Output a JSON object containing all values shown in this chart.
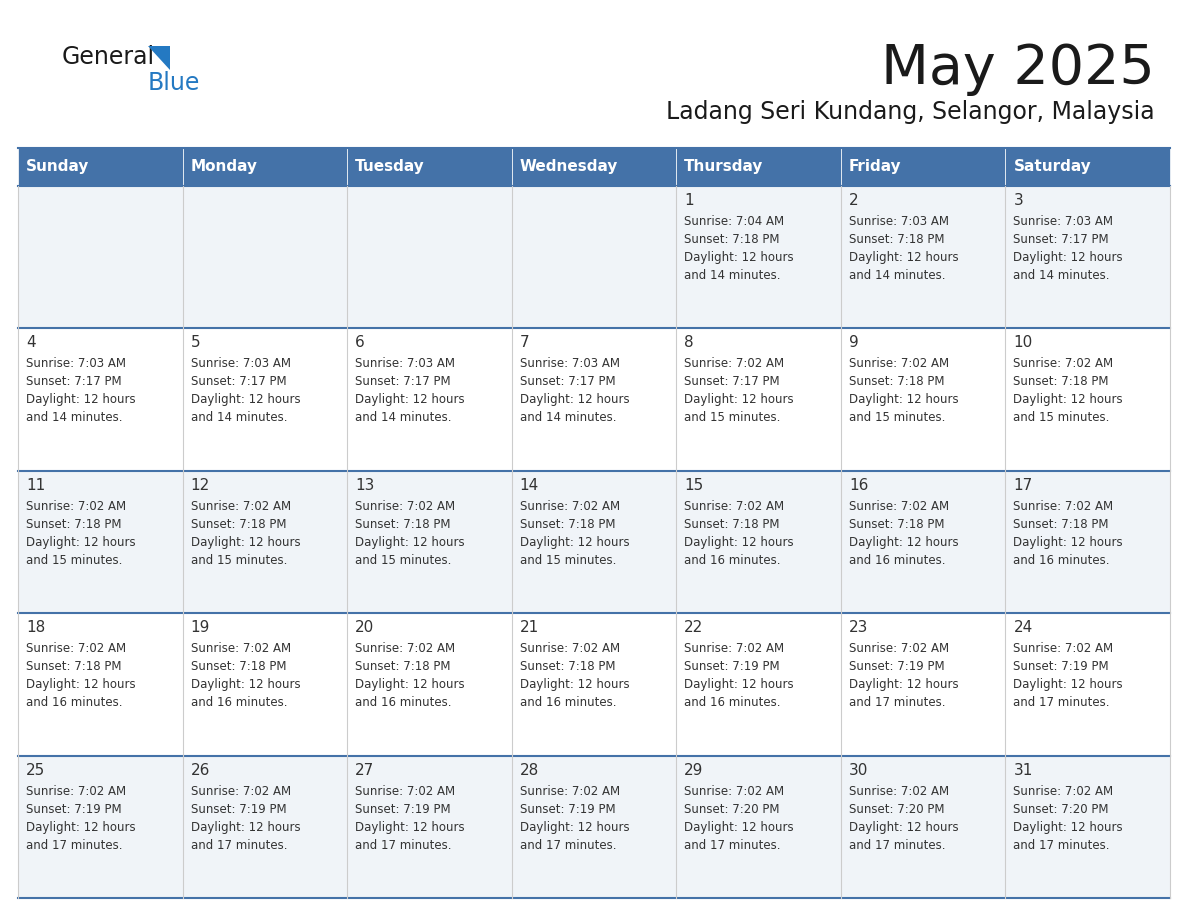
{
  "title": "May 2025",
  "subtitle": "Ladang Seri Kundang, Selangor, Malaysia",
  "header_bg": "#4472A8",
  "header_text": "#FFFFFF",
  "day_names": [
    "Sunday",
    "Monday",
    "Tuesday",
    "Wednesday",
    "Thursday",
    "Friday",
    "Saturday"
  ],
  "row_bg_even": "#F0F4F8",
  "row_bg_odd": "#FFFFFF",
  "cell_text_color": "#333333",
  "title_color": "#1A1A1A",
  "logo_general_color": "#1A1A1A",
  "logo_blue_color": "#2479C2",
  "logo_triangle_color": "#2479C2",
  "row_border_color": "#4472A8",
  "col_border_color": "#CCCCCC",
  "days": [
    {
      "date": 1,
      "col": 4,
      "row": 0,
      "sunrise": "7:04 AM",
      "sunset": "7:18 PM",
      "minutes": "14"
    },
    {
      "date": 2,
      "col": 5,
      "row": 0,
      "sunrise": "7:03 AM",
      "sunset": "7:18 PM",
      "minutes": "14"
    },
    {
      "date": 3,
      "col": 6,
      "row": 0,
      "sunrise": "7:03 AM",
      "sunset": "7:17 PM",
      "minutes": "14"
    },
    {
      "date": 4,
      "col": 0,
      "row": 1,
      "sunrise": "7:03 AM",
      "sunset": "7:17 PM",
      "minutes": "14"
    },
    {
      "date": 5,
      "col": 1,
      "row": 1,
      "sunrise": "7:03 AM",
      "sunset": "7:17 PM",
      "minutes": "14"
    },
    {
      "date": 6,
      "col": 2,
      "row": 1,
      "sunrise": "7:03 AM",
      "sunset": "7:17 PM",
      "minutes": "14"
    },
    {
      "date": 7,
      "col": 3,
      "row": 1,
      "sunrise": "7:03 AM",
      "sunset": "7:17 PM",
      "minutes": "14"
    },
    {
      "date": 8,
      "col": 4,
      "row": 1,
      "sunrise": "7:02 AM",
      "sunset": "7:17 PM",
      "minutes": "15"
    },
    {
      "date": 9,
      "col": 5,
      "row": 1,
      "sunrise": "7:02 AM",
      "sunset": "7:18 PM",
      "minutes": "15"
    },
    {
      "date": 10,
      "col": 6,
      "row": 1,
      "sunrise": "7:02 AM",
      "sunset": "7:18 PM",
      "minutes": "15"
    },
    {
      "date": 11,
      "col": 0,
      "row": 2,
      "sunrise": "7:02 AM",
      "sunset": "7:18 PM",
      "minutes": "15"
    },
    {
      "date": 12,
      "col": 1,
      "row": 2,
      "sunrise": "7:02 AM",
      "sunset": "7:18 PM",
      "minutes": "15"
    },
    {
      "date": 13,
      "col": 2,
      "row": 2,
      "sunrise": "7:02 AM",
      "sunset": "7:18 PM",
      "minutes": "15"
    },
    {
      "date": 14,
      "col": 3,
      "row": 2,
      "sunrise": "7:02 AM",
      "sunset": "7:18 PM",
      "minutes": "15"
    },
    {
      "date": 15,
      "col": 4,
      "row": 2,
      "sunrise": "7:02 AM",
      "sunset": "7:18 PM",
      "minutes": "16"
    },
    {
      "date": 16,
      "col": 5,
      "row": 2,
      "sunrise": "7:02 AM",
      "sunset": "7:18 PM",
      "minutes": "16"
    },
    {
      "date": 17,
      "col": 6,
      "row": 2,
      "sunrise": "7:02 AM",
      "sunset": "7:18 PM",
      "minutes": "16"
    },
    {
      "date": 18,
      "col": 0,
      "row": 3,
      "sunrise": "7:02 AM",
      "sunset": "7:18 PM",
      "minutes": "16"
    },
    {
      "date": 19,
      "col": 1,
      "row": 3,
      "sunrise": "7:02 AM",
      "sunset": "7:18 PM",
      "minutes": "16"
    },
    {
      "date": 20,
      "col": 2,
      "row": 3,
      "sunrise": "7:02 AM",
      "sunset": "7:18 PM",
      "minutes": "16"
    },
    {
      "date": 21,
      "col": 3,
      "row": 3,
      "sunrise": "7:02 AM",
      "sunset": "7:18 PM",
      "minutes": "16"
    },
    {
      "date": 22,
      "col": 4,
      "row": 3,
      "sunrise": "7:02 AM",
      "sunset": "7:19 PM",
      "minutes": "16"
    },
    {
      "date": 23,
      "col": 5,
      "row": 3,
      "sunrise": "7:02 AM",
      "sunset": "7:19 PM",
      "minutes": "17"
    },
    {
      "date": 24,
      "col": 6,
      "row": 3,
      "sunrise": "7:02 AM",
      "sunset": "7:19 PM",
      "minutes": "17"
    },
    {
      "date": 25,
      "col": 0,
      "row": 4,
      "sunrise": "7:02 AM",
      "sunset": "7:19 PM",
      "minutes": "17"
    },
    {
      "date": 26,
      "col": 1,
      "row": 4,
      "sunrise": "7:02 AM",
      "sunset": "7:19 PM",
      "minutes": "17"
    },
    {
      "date": 27,
      "col": 2,
      "row": 4,
      "sunrise": "7:02 AM",
      "sunset": "7:19 PM",
      "minutes": "17"
    },
    {
      "date": 28,
      "col": 3,
      "row": 4,
      "sunrise": "7:02 AM",
      "sunset": "7:19 PM",
      "minutes": "17"
    },
    {
      "date": 29,
      "col": 4,
      "row": 4,
      "sunrise": "7:02 AM",
      "sunset": "7:20 PM",
      "minutes": "17"
    },
    {
      "date": 30,
      "col": 5,
      "row": 4,
      "sunrise": "7:02 AM",
      "sunset": "7:20 PM",
      "minutes": "17"
    },
    {
      "date": 31,
      "col": 6,
      "row": 4,
      "sunrise": "7:02 AM",
      "sunset": "7:20 PM",
      "minutes": "17"
    }
  ]
}
